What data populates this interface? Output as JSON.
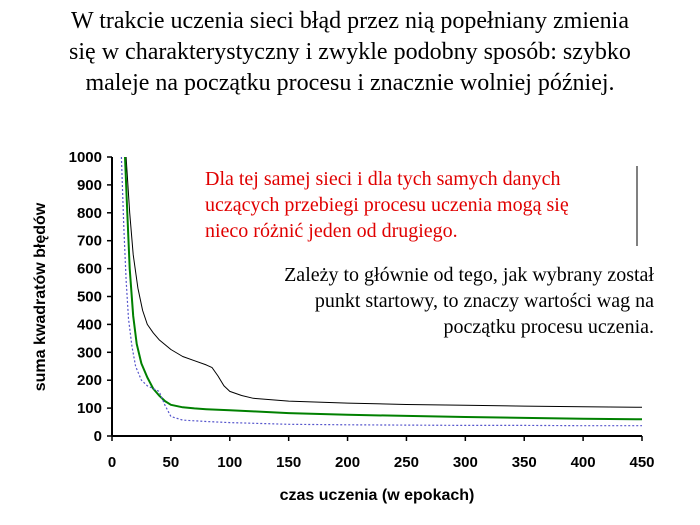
{
  "heading": {
    "lines": [
      "W trakcie uczenia sieci błąd przez nią popełniany zmienia",
      "się w charakterystyczny i zwykle podobny sposób: szybko",
      "maleje na początku procesu i znacznie wolniej później."
    ]
  },
  "notes": {
    "red_lines": [
      "Dla tej samej sieci i dla tych samych danych",
      "uczących przebiegi procesu uczenia mogą się",
      "nieco różnić jeden od drugiego."
    ],
    "red_color": "#e00000",
    "black_lines": [
      "Zależy to głównie od tego, jak wybrany został",
      "punkt  startowy, to znaczy wartości wag na",
      "początku procesu uczenia."
    ]
  },
  "chart_data": {
    "type": "line",
    "xlabel": "czas uczenia (w epokach)",
    "ylabel": "suma kwadratów błędów",
    "xlim": [
      0,
      450
    ],
    "ylim": [
      0,
      1000
    ],
    "xticks": [
      0,
      50,
      100,
      150,
      200,
      250,
      300,
      350,
      400,
      450
    ],
    "yticks": [
      0,
      100,
      200,
      300,
      400,
      500,
      600,
      700,
      800,
      900,
      1000
    ],
    "grid": false,
    "series": [
      {
        "color": "#000000",
        "style": "solid",
        "x": [
          12,
          15,
          18,
          22,
          26,
          30,
          35,
          40,
          50,
          60,
          70,
          80,
          85,
          90,
          95,
          100,
          110,
          120,
          150,
          200,
          250,
          300,
          350,
          400,
          450
        ],
        "y": [
          1000,
          800,
          650,
          530,
          450,
          400,
          370,
          345,
          310,
          285,
          270,
          255,
          245,
          215,
          180,
          160,
          145,
          135,
          125,
          118,
          113,
          110,
          107,
          105,
          103
        ]
      },
      {
        "color": "#008000",
        "style": "solid",
        "x": [
          11,
          13,
          15,
          18,
          21,
          25,
          30,
          35,
          40,
          45,
          50,
          60,
          70,
          80,
          100,
          120,
          150,
          200,
          250,
          300,
          350,
          400,
          450
        ],
        "y": [
          1000,
          800,
          600,
          430,
          330,
          260,
          210,
          170,
          145,
          125,
          112,
          103,
          99,
          96,
          92,
          88,
          82,
          76,
          72,
          68,
          65,
          62,
          60
        ]
      },
      {
        "color": "#5555cc",
        "style": "dotted",
        "x": [
          8,
          10,
          12,
          14,
          17,
          20,
          25,
          30,
          35,
          40,
          45,
          50,
          60,
          80,
          100,
          150,
          200,
          250,
          300,
          350,
          400,
          450
        ],
        "y": [
          1000,
          750,
          560,
          420,
          320,
          250,
          200,
          180,
          170,
          160,
          110,
          70,
          57,
          52,
          48,
          42,
          40,
          39,
          38,
          38,
          37,
          37
        ]
      }
    ]
  }
}
